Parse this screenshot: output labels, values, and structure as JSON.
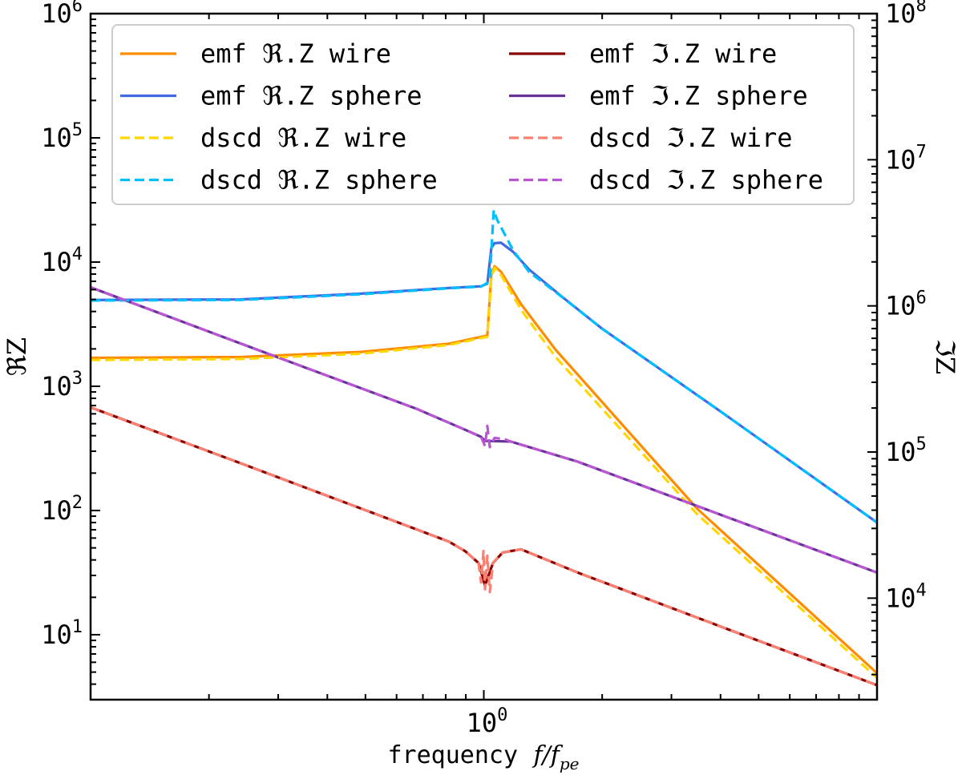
{
  "chart_data": {
    "type": "line",
    "xlabel": "frequency",
    "xlabel_math": "f/f",
    "xlabel_sub": "pe",
    "ylabel": "ℜZ",
    "y2label": "ℑZ",
    "xscale": "log",
    "yscale": "log",
    "y2scale": "log",
    "xlim": [
      0.1,
      10
    ],
    "ylim": [
      3,
      1000000
    ],
    "y2lim": [
      2020,
      100000000
    ],
    "x_tick_labels": [
      {
        "value": 1,
        "base": "10",
        "exp": "0"
      }
    ],
    "y_tick_labels": [
      {
        "value": 10,
        "base": "10",
        "exp": "1"
      },
      {
        "value": 100,
        "base": "10",
        "exp": "2"
      },
      {
        "value": 1000,
        "base": "10",
        "exp": "3"
      },
      {
        "value": 10000,
        "base": "10",
        "exp": "4"
      },
      {
        "value": 100000,
        "base": "10",
        "exp": "5"
      },
      {
        "value": 1000000,
        "base": "10",
        "exp": "6"
      }
    ],
    "y2_tick_labels": [
      {
        "value": 10000,
        "base": "10",
        "exp": "4"
      },
      {
        "value": 100000,
        "base": "10",
        "exp": "5"
      },
      {
        "value": 1000000,
        "base": "10",
        "exp": "6"
      },
      {
        "value": 10000000,
        "base": "10",
        "exp": "7"
      },
      {
        "value": 100000000,
        "base": "10",
        "exp": "8"
      }
    ],
    "grid": false,
    "legend": "top",
    "series": [
      {
        "name": "emf ℜ.Z wire",
        "axis": "left",
        "color": "#ff8c00",
        "dashed": false,
        "points": [
          [
            0.1,
            1695
          ],
          [
            0.24,
            1720
          ],
          [
            0.487,
            1890
          ],
          [
            0.815,
            2200
          ],
          [
            0.984,
            2500
          ],
          [
            1.021,
            2560
          ],
          [
            1.045,
            8000
          ],
          [
            1.065,
            9250
          ],
          [
            1.106,
            8340
          ],
          [
            1.243,
            4600
          ],
          [
            1.522,
            1970
          ],
          [
            2.516,
            330
          ],
          [
            3.493,
            103
          ],
          [
            10,
            4.9
          ]
        ]
      },
      {
        "name": "emf ℜ.Z sphere",
        "axis": "left",
        "color": "#4169e1",
        "dashed": false,
        "points": [
          [
            0.1,
            4950
          ],
          [
            0.24,
            5000
          ],
          [
            0.487,
            5570
          ],
          [
            0.815,
            6190
          ],
          [
            0.984,
            6380
          ],
          [
            1.021,
            6700
          ],
          [
            1.045,
            13000
          ],
          [
            1.065,
            14200
          ],
          [
            1.106,
            14300
          ],
          [
            1.187,
            12100
          ],
          [
            1.303,
            8720
          ],
          [
            1.572,
            5330
          ],
          [
            1.99,
            2940
          ],
          [
            4.03,
            617
          ],
          [
            10,
            80
          ]
        ]
      },
      {
        "name": "dscd ℜ.Z wire",
        "axis": "left",
        "color": "#ffd700",
        "dashed": true,
        "points": [
          [
            0.1,
            1630
          ],
          [
            0.24,
            1660
          ],
          [
            0.487,
            1830
          ],
          [
            0.815,
            2150
          ],
          [
            0.984,
            2450
          ],
          [
            1.021,
            2500
          ],
          [
            1.045,
            7500
          ],
          [
            1.065,
            9000
          ],
          [
            1.106,
            7900
          ],
          [
            1.243,
            4150
          ],
          [
            1.522,
            1720
          ],
          [
            2.516,
            295
          ],
          [
            3.493,
            93
          ],
          [
            10,
            4.5
          ]
        ]
      },
      {
        "name": "dscd ℜ.Z sphere",
        "axis": "left",
        "color": "#00bfff",
        "dashed": true,
        "points": [
          [
            0.1,
            4900
          ],
          [
            0.24,
            4950
          ],
          [
            0.487,
            5500
          ],
          [
            0.815,
            6150
          ],
          [
            0.984,
            6350
          ],
          [
            1.021,
            6800
          ],
          [
            1.036,
            7500
          ],
          [
            1.06,
            26200
          ],
          [
            1.08,
            22000
          ],
          [
            1.187,
            12450
          ],
          [
            1.303,
            8340
          ],
          [
            1.572,
            5300
          ],
          [
            1.99,
            2940
          ],
          [
            4.03,
            617
          ],
          [
            10,
            80
          ]
        ]
      },
      {
        "name": "emf ℑ.Z wire",
        "axis": "right",
        "color": "#8b0000",
        "dashed": false,
        "points": [
          [
            0.1,
            202000
          ],
          [
            0.24,
            84000
          ],
          [
            0.676,
            29500
          ],
          [
            0.815,
            24400
          ],
          [
            0.896,
            21000
          ],
          [
            0.97,
            17400
          ],
          [
            1.007,
            12200
          ],
          [
            1.055,
            17400
          ],
          [
            1.116,
            20500
          ],
          [
            1.243,
            21600
          ],
          [
            1.729,
            15000
          ],
          [
            4.026,
            6360
          ],
          [
            10,
            2540
          ]
        ]
      },
      {
        "name": "emf ℑ.Z sphere",
        "axis": "right",
        "color": "#663399",
        "dashed": false,
        "points": [
          [
            0.1,
            1340000
          ],
          [
            0.24,
            554000
          ],
          [
            0.676,
            197000
          ],
          [
            0.896,
            142000
          ],
          [
            0.984,
            127000
          ],
          [
            1.007,
            119000
          ],
          [
            1.17,
            118000
          ],
          [
            1.729,
            86000
          ],
          [
            4.026,
            37000
          ],
          [
            10,
            14960
          ]
        ]
      },
      {
        "name": "dscd ℑ.Z wire",
        "axis": "right",
        "color": "#fa8072",
        "dashed": true,
        "points": [
          [
            0.1,
            202000
          ],
          [
            0.24,
            84000
          ],
          [
            0.676,
            29500
          ],
          [
            0.815,
            24400
          ],
          [
            0.896,
            21000
          ],
          [
            0.97,
            17400
          ],
          [
            0.984,
            12800
          ],
          [
            0.998,
            21000
          ],
          [
            1.007,
            11500
          ],
          [
            1.021,
            19500
          ],
          [
            1.036,
            11000
          ],
          [
            1.055,
            17400
          ],
          [
            1.116,
            20500
          ],
          [
            1.243,
            21600
          ],
          [
            1.729,
            15000
          ],
          [
            4.026,
            6360
          ],
          [
            10,
            2540
          ]
        ]
      },
      {
        "name": "dscd ℑ.Z sphere",
        "axis": "right",
        "color": "#ba55d3",
        "dashed": true,
        "points": [
          [
            0.1,
            1340000
          ],
          [
            0.24,
            554000
          ],
          [
            0.676,
            197000
          ],
          [
            0.896,
            142000
          ],
          [
            0.984,
            127000
          ],
          [
            1.007,
            110000
          ],
          [
            1.021,
            151000
          ],
          [
            1.036,
            108000
          ],
          [
            1.065,
            125000
          ],
          [
            1.133,
            122000
          ],
          [
            1.17,
            118000
          ],
          [
            1.729,
            86000
          ],
          [
            4.026,
            37000
          ],
          [
            10,
            14960
          ]
        ]
      }
    ]
  }
}
